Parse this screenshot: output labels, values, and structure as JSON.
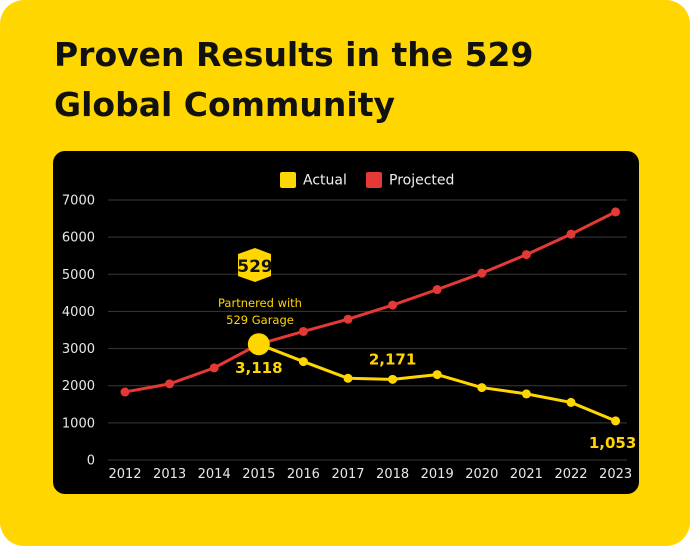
{
  "header": {
    "title_line1": "Proven Results in the 529",
    "title_line2": "Global Community"
  },
  "colors": {
    "background": "#FFD600",
    "panel": "#000000",
    "actual": "#FFD600",
    "projected": "#E53935"
  },
  "chart_data": {
    "type": "line",
    "categories": [
      "2012",
      "2013",
      "2014",
      "2015",
      "2016",
      "2017",
      "2018",
      "2019",
      "2020",
      "2021",
      "2022",
      "2023"
    ],
    "series": [
      {
        "name": "Actual",
        "x": [
          "2015",
          "2016",
          "2017",
          "2018",
          "2019",
          "2020",
          "2021",
          "2022",
          "2023"
        ],
        "values": [
          3118,
          2650,
          2200,
          2171,
          2300,
          1950,
          1780,
          1550,
          1053
        ]
      },
      {
        "name": "Projected",
        "x": [
          "2012",
          "2013",
          "2014",
          "2015",
          "2016",
          "2017",
          "2018",
          "2019",
          "2020",
          "2021",
          "2022",
          "2023"
        ],
        "values": [
          1830,
          2050,
          2480,
          3118,
          3460,
          3790,
          4170,
          4590,
          5030,
          5530,
          6080,
          6680
        ]
      }
    ],
    "yticks": [
      0,
      1000,
      2000,
      3000,
      4000,
      5000,
      6000,
      7000
    ],
    "ylim": [
      0,
      7000
    ],
    "legend": [
      "Actual",
      "Projected"
    ],
    "legend_position": "top",
    "grid": true,
    "data_labels": [
      {
        "x": "2015",
        "text": "3,118"
      },
      {
        "x": "2018",
        "text": "2,171"
      },
      {
        "x": "2023",
        "text": "1,053"
      }
    ],
    "annotation": {
      "x": "2015",
      "logo_text": "529",
      "line1": "Partnered with",
      "line2": "529 Garage"
    }
  }
}
